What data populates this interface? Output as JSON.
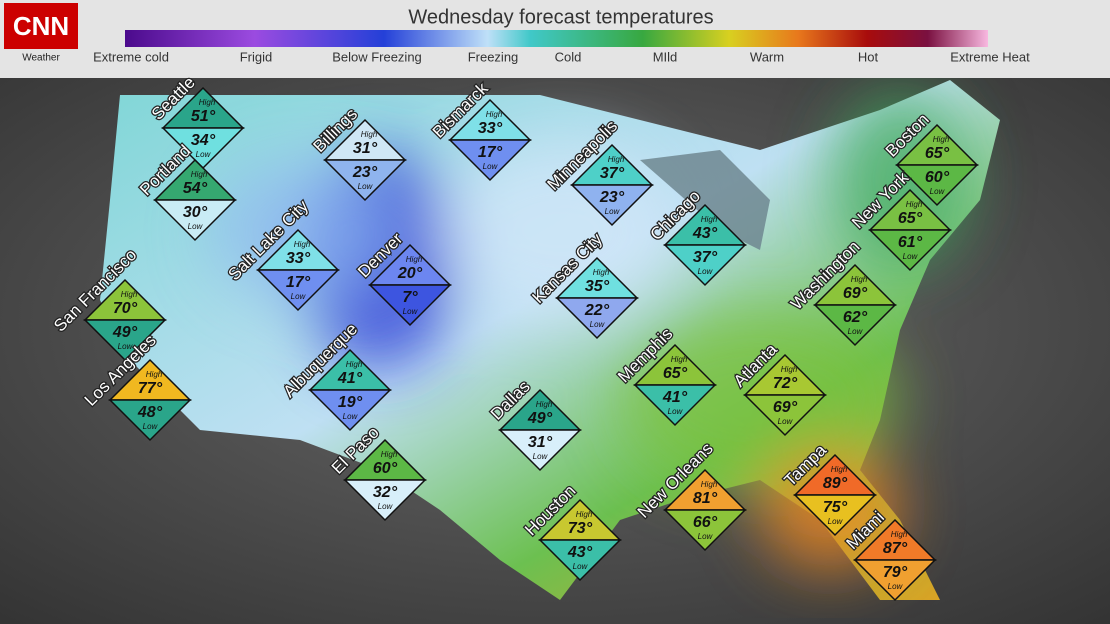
{
  "header": {
    "logo": "CNN",
    "logo_sub": "Weather",
    "title": "Wednesday forecast temperatures"
  },
  "legend": [
    "Extreme cold",
    "Frigid",
    "Below Freezing",
    "Freezing",
    "Cold",
    "MIld",
    "Warm",
    "Hot",
    "Extreme Heat"
  ],
  "labels": {
    "high": "High",
    "low": "Low"
  },
  "cities": [
    {
      "name": "Seattle",
      "high": "51°",
      "low": "34°"
    },
    {
      "name": "Portland",
      "high": "54°",
      "low": "30°"
    },
    {
      "name": "Billings",
      "high": "31°",
      "low": "23°"
    },
    {
      "name": "Bismarck",
      "high": "33°",
      "low": "17°"
    },
    {
      "name": "Minneapolis",
      "high": "37°",
      "low": "23°"
    },
    {
      "name": "Chicago",
      "high": "43°",
      "low": "37°"
    },
    {
      "name": "Boston",
      "high": "65°",
      "low": "60°"
    },
    {
      "name": "New York",
      "high": "65°",
      "low": "61°"
    },
    {
      "name": "Salt Lake City",
      "high": "33°",
      "low": "17°"
    },
    {
      "name": "Denver",
      "high": "20°",
      "low": "7°"
    },
    {
      "name": "Kansas City",
      "high": "35°",
      "low": "22°"
    },
    {
      "name": "Washington",
      "high": "69°",
      "low": "62°"
    },
    {
      "name": "San Francisco",
      "high": "70°",
      "low": "49°"
    },
    {
      "name": "Los Angeles",
      "high": "77°",
      "low": "48°"
    },
    {
      "name": "Albuquerque",
      "high": "41°",
      "low": "19°"
    },
    {
      "name": "Memphis",
      "high": "65°",
      "low": "41°"
    },
    {
      "name": "Atlanta",
      "high": "72°",
      "low": "69°"
    },
    {
      "name": "Dallas",
      "high": "49°",
      "low": "31°"
    },
    {
      "name": "El Paso",
      "high": "60°",
      "low": "32°"
    },
    {
      "name": "Houston",
      "high": "73°",
      "low": "43°"
    },
    {
      "name": "New Orleans",
      "high": "81°",
      "low": "66°"
    },
    {
      "name": "Tampa",
      "high": "89°",
      "low": "75°"
    },
    {
      "name": "Miami",
      "high": "87°",
      "low": "79°"
    }
  ]
}
